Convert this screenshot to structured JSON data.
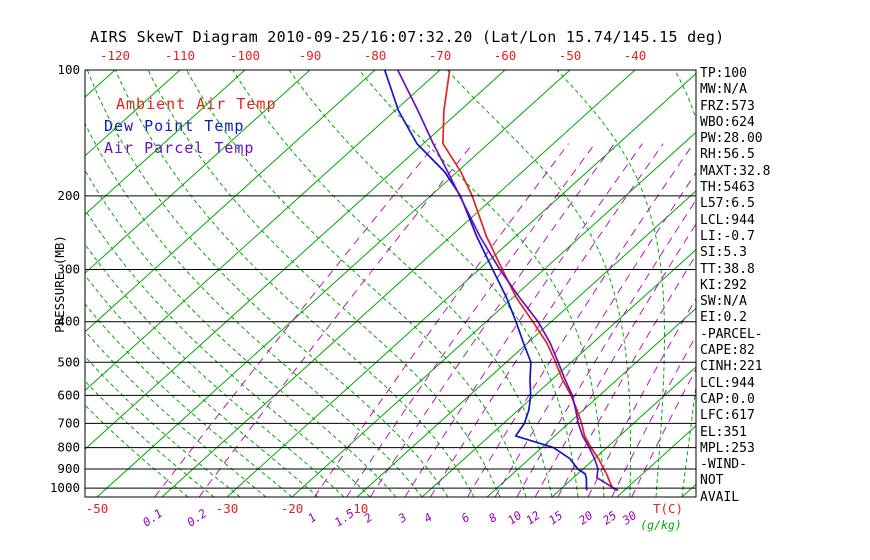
{
  "title": "AIRS SkewT Diagram 2010-09-25/16:07:32.20 (Lat/Lon 15.74/145.15 deg)",
  "legend": {
    "items": [
      {
        "label": "Ambient Air Temp",
        "color": "#e32222"
      },
      {
        "label": "Dew Point Temp",
        "color": "#1414cc"
      },
      {
        "label": "Air Parcel Temp",
        "color": "#6a0fc4"
      }
    ]
  },
  "stats_panel": {
    "lines": [
      "TP:100",
      "MW:N/A",
      "FRZ:573",
      "WBO:624",
      "PW:28.00",
      "RH:56.5",
      "MAXT:32.8",
      "TH:5463",
      "L57:6.5",
      "LCL:944",
      "LI:-0.7",
      "SI:5.3",
      "TT:38.8",
      "KI:292",
      "SW:N/A",
      "EI:0.2",
      "-PARCEL-",
      "CAPE:82",
      "CINH:221",
      "LCL:944",
      "CAP:0.0",
      "LFC:617",
      "EL:351",
      "MPL:253",
      "-WIND-",
      "NOT",
      "AVAIL"
    ]
  },
  "chart_data": {
    "type": "line",
    "variant": "skew-t-log-p",
    "title": "AIRS SkewT Diagram 2010-09-25/16:07:32.20 (Lat/Lon 15.74/145.15 deg)",
    "pressure_axis": {
      "label": "PRESSURE (MB)",
      "scale": "log",
      "range_mb": [
        100,
        1050
      ],
      "ticks": [
        100,
        200,
        300,
        400,
        500,
        600,
        700,
        800,
        900,
        1000
      ]
    },
    "temperature_axis": {
      "label": "T(C)",
      "top_labels_c": [
        -120,
        -110,
        -100,
        -90,
        -80,
        -70,
        -60,
        -50,
        -40
      ],
      "bottom_labels_c": [
        -50,
        -30,
        -20,
        -10
      ],
      "isotherm_range_c": [
        -120,
        40
      ],
      "isotherm_step_c": 10
    },
    "mixing_ratio_axis": {
      "label": "(g/kg)",
      "values_g_per_kg": [
        0.1,
        0.2,
        1,
        1.5,
        2,
        3,
        4,
        6,
        8,
        10,
        12,
        15,
        20,
        25,
        30
      ]
    },
    "moist_adiabats": {
      "surface_start_min_c": -36,
      "surface_start_max_c": 40,
      "step_c": 4
    },
    "series": [
      {
        "name": "Ambient Air Temp",
        "color": "#e32222",
        "points": [
          [
            1012,
            29.0
          ],
          [
            1000,
            27.8
          ],
          [
            950,
            25.6
          ],
          [
            925,
            24.5
          ],
          [
            900,
            23.2
          ],
          [
            850,
            20.6
          ],
          [
            800,
            17.6
          ],
          [
            750,
            14.6
          ],
          [
            700,
            12.0
          ],
          [
            650,
            9.0
          ],
          [
            600,
            5.6
          ],
          [
            550,
            1.6
          ],
          [
            500,
            -2.4
          ],
          [
            450,
            -7.0
          ],
          [
            400,
            -12.8
          ],
          [
            350,
            -19.5
          ],
          [
            300,
            -26.4
          ],
          [
            250,
            -34.5
          ],
          [
            200,
            -43.6
          ],
          [
            175,
            -49.5
          ],
          [
            150,
            -57.0
          ],
          [
            125,
            -62.5
          ],
          [
            100,
            -68.5
          ]
        ]
      },
      {
        "name": "Dew Point Temp",
        "color": "#1414cc",
        "points": [
          [
            1012,
            24.2
          ],
          [
            1000,
            23.8
          ],
          [
            950,
            22.2
          ],
          [
            925,
            21.2
          ],
          [
            900,
            19.2
          ],
          [
            850,
            16.2
          ],
          [
            800,
            11.8
          ],
          [
            750,
            4.0
          ],
          [
            700,
            3.2
          ],
          [
            650,
            1.6
          ],
          [
            600,
            -0.6
          ],
          [
            550,
            -3.4
          ],
          [
            500,
            -6.2
          ],
          [
            450,
            -10.6
          ],
          [
            400,
            -15.4
          ],
          [
            350,
            -21.0
          ],
          [
            300,
            -27.9
          ],
          [
            250,
            -36.0
          ],
          [
            200,
            -45.4
          ],
          [
            175,
            -52.0
          ],
          [
            150,
            -61.0
          ],
          [
            125,
            -69.5
          ],
          [
            100,
            -78.5
          ]
        ]
      },
      {
        "name": "Air Parcel Temp",
        "color": "#6a0fc4",
        "points": [
          [
            1012,
            29.0
          ],
          [
            1000,
            28.0
          ],
          [
            944,
            23.6
          ],
          [
            900,
            22.3
          ],
          [
            850,
            20.0
          ],
          [
            800,
            17.3
          ],
          [
            750,
            14.3
          ],
          [
            700,
            11.5
          ],
          [
            650,
            8.8
          ],
          [
            600,
            5.8
          ],
          [
            550,
            2.0
          ],
          [
            500,
            -2.0
          ],
          [
            450,
            -6.5
          ],
          [
            400,
            -12.0
          ],
          [
            350,
            -19.0
          ],
          [
            300,
            -26.8
          ],
          [
            250,
            -35.5
          ],
          [
            200,
            -45.5
          ],
          [
            175,
            -51.5
          ],
          [
            150,
            -58.5
          ],
          [
            125,
            -66.5
          ],
          [
            100,
            -76.5
          ]
        ]
      }
    ],
    "colors": {
      "isotherm": "#00a800",
      "moist_adiabat": "#00a800",
      "mixing_ratio": "#b816b8",
      "pressure_lines": "#000000",
      "frame": "#000000",
      "top_axis_labels": "#e32222",
      "bottom_temp_labels": "#e32222",
      "mixing_labels": "#9a00c8",
      "unit_label": "#00a800"
    }
  }
}
